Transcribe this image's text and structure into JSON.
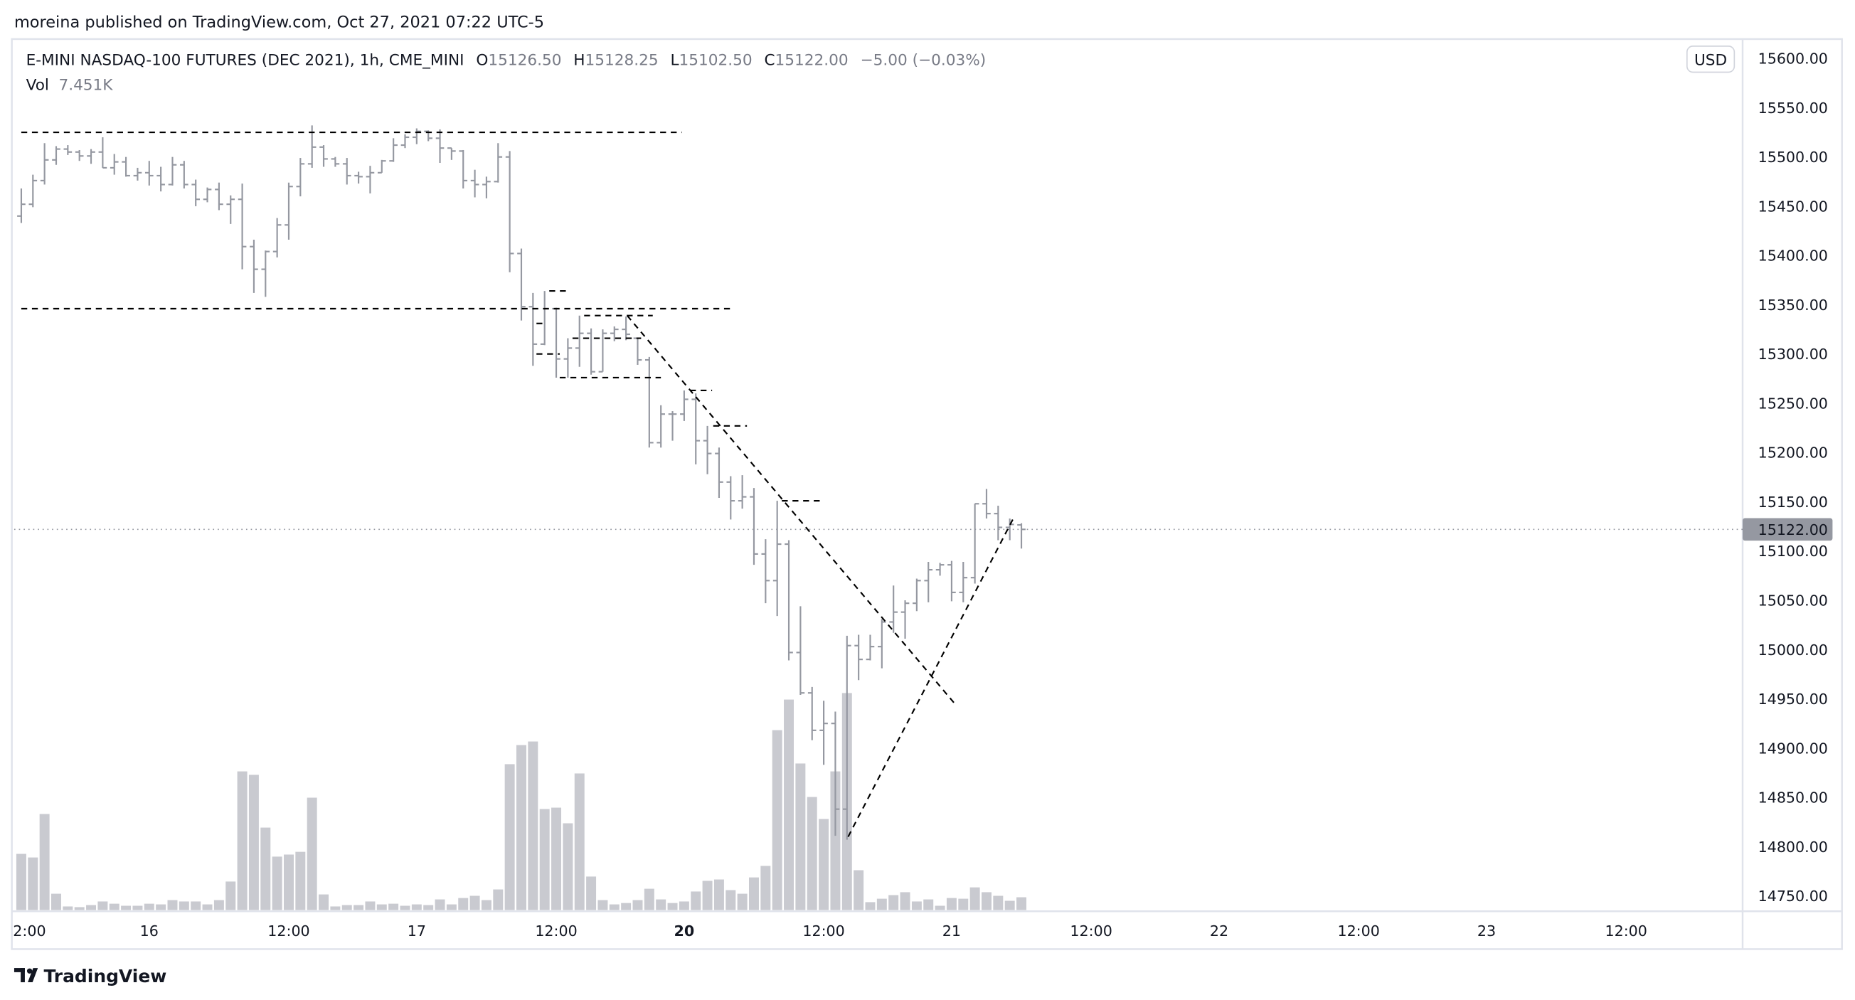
{
  "publish_line": "moreina published on TradingView.com, Oct 27, 2021 07:22 UTC-5",
  "legend": {
    "symbol": "E-MINI NASDAQ-100 FUTURES (DEC 2021), 1h, CME_MINI",
    "o_label": "O",
    "o": "15126.50",
    "h_label": "H",
    "h": "15128.25",
    "l_label": "L",
    "l": "15102.50",
    "c_label": "C",
    "c": "15122.00",
    "change": "−5.00 (−0.03%)",
    "vol_label": "Vol",
    "vol": "7.451K"
  },
  "currency": "USD",
  "last_price_label": "15122.00",
  "brand": "TradingView",
  "colors": {
    "bar": "#9598a1",
    "volume": "#c9cad0",
    "drawing": "#000000",
    "last_price_bg": "#9598a1"
  },
  "chart_data": {
    "type": "ohlc",
    "title": "E-MINI NASDAQ-100 FUTURES (DEC 2021), 1h, CME_MINI",
    "ylim": [
      14725,
      15625
    ],
    "last_price": 15122.0,
    "price_ticks": [
      "15600.00",
      "15550.00",
      "15500.00",
      "15450.00",
      "15400.00",
      "15350.00",
      "15300.00",
      "15250.00",
      "15200.00",
      "15150.00",
      "15100.00",
      "15050.00",
      "15000.00",
      "14950.00",
      "14900.00",
      "14850.00",
      "14800.00",
      "14750.00"
    ],
    "time_ticks": [
      {
        "label": "2:00",
        "bar": 0.4,
        "bold": false
      },
      {
        "label": "16",
        "bar": 11,
        "bold": false
      },
      {
        "label": "12:00",
        "bar": 23,
        "bold": false
      },
      {
        "label": "17",
        "bar": 34,
        "bold": false
      },
      {
        "label": "12:00",
        "bar": 46,
        "bold": false
      },
      {
        "label": "20",
        "bar": 57,
        "bold": true
      },
      {
        "label": "12:00",
        "bar": 69,
        "bold": false
      },
      {
        "label": "21",
        "bar": 80,
        "bold": false
      },
      {
        "label": "12:00",
        "bar": 92,
        "bold": false
      },
      {
        "label": "22",
        "bar": 103,
        "bold": false
      },
      {
        "label": "12:00",
        "bar": 115,
        "bold": false
      },
      {
        "label": "23",
        "bar": 126,
        "bold": false
      },
      {
        "label": "12:00",
        "bar": 138,
        "bold": false
      }
    ],
    "bar_fields": [
      "open",
      "high",
      "low",
      "close",
      "volume_k"
    ],
    "bars": [
      [
        15440,
        15468,
        15433,
        15452,
        32.7
      ],
      [
        15452,
        15482,
        15449,
        15476,
        30.6
      ],
      [
        15476,
        15514,
        15472,
        15497,
        55.9
      ],
      [
        15497,
        15511,
        15492,
        15508,
        9.5
      ],
      [
        15508,
        15512,
        15502,
        15505,
        2.1
      ],
      [
        15505,
        15507,
        15496,
        15501,
        1.7
      ],
      [
        15501,
        15508,
        15493,
        15505,
        2.9
      ],
      [
        15505,
        15520,
        15489,
        15489,
        5.0
      ],
      [
        15489,
        15503,
        15482,
        15495,
        3.7
      ],
      [
        15495,
        15500,
        15480,
        15481,
        2.5
      ],
      [
        15481,
        15489,
        15476,
        15484,
        2.5
      ],
      [
        15484,
        15496,
        15471,
        15481,
        3.7
      ],
      [
        15481,
        15490,
        15465,
        15472,
        3.3
      ],
      [
        15472,
        15500,
        15471,
        15492,
        5.8
      ],
      [
        15492,
        15496,
        15468,
        15472,
        5.0
      ],
      [
        15472,
        15477,
        15450,
        15457,
        5.0
      ],
      [
        15457,
        15469,
        15454,
        15467,
        3.3
      ],
      [
        15467,
        15474,
        15446,
        15452,
        5.8
      ],
      [
        15452,
        15461,
        15432,
        15457,
        16.6
      ],
      [
        15457,
        15473,
        15386,
        15409,
        80.7
      ],
      [
        15409,
        15416,
        15362,
        15386,
        78.7
      ],
      [
        15386,
        15405,
        15358,
        15404,
        48.0
      ],
      [
        15404,
        15438,
        15398,
        15431,
        31.1
      ],
      [
        15431,
        15474,
        15416,
        15470,
        32.3
      ],
      [
        15470,
        15499,
        15460,
        15493,
        33.9
      ],
      [
        15493,
        15532,
        15489,
        15510,
        65.4
      ],
      [
        15510,
        15512,
        15490,
        15498,
        9.1
      ],
      [
        15498,
        15500,
        15490,
        15493,
        2.1
      ],
      [
        15493,
        15499,
        15472,
        15481,
        2.9
      ],
      [
        15481,
        15485,
        15473,
        15480,
        2.9
      ],
      [
        15480,
        15491,
        15463,
        15484,
        5.0
      ],
      [
        15484,
        15497,
        15484,
        15496,
        3.3
      ],
      [
        15496,
        15519,
        15495,
        15512,
        3.7
      ],
      [
        15512,
        15523,
        15509,
        15520,
        2.5
      ],
      [
        15520,
        15529,
        15513,
        15526,
        3.3
      ],
      [
        15526,
        15527,
        15516,
        15519,
        2.9
      ],
      [
        15519,
        15528,
        15494,
        15509,
        6.2
      ],
      [
        15509,
        15509,
        15497,
        15506,
        3.3
      ],
      [
        15506,
        15507,
        15468,
        15476,
        7.0
      ],
      [
        15476,
        15487,
        15459,
        15472,
        8.3
      ],
      [
        15472,
        15480,
        15458,
        15475,
        5.8
      ],
      [
        15475,
        15514,
        15474,
        15500,
        12.0
      ],
      [
        15500,
        15506,
        15383,
        15402,
        84.9
      ],
      [
        15402,
        15407,
        15334,
        15348,
        96.0
      ],
      [
        15348,
        15362,
        15288,
        15310,
        98.1
      ],
      [
        15310,
        15364,
        15309,
        15346,
        58.8
      ],
      [
        15346,
        15347,
        15276,
        15295,
        59.6
      ],
      [
        15295,
        15316,
        15276,
        15306,
        50.5
      ],
      [
        15306,
        15339,
        15287,
        15321,
        79.5
      ],
      [
        15321,
        15326,
        15279,
        15282,
        19.5
      ],
      [
        15282,
        15325,
        15282,
        15321,
        5.8
      ],
      [
        15321,
        15328,
        15313,
        15325,
        3.3
      ],
      [
        15325,
        15338,
        15314,
        15320,
        4.1
      ],
      [
        15316,
        15316,
        15289,
        15294,
        5.8
      ],
      [
        15294,
        15297,
        15205,
        15210,
        12.4
      ],
      [
        15210,
        15248,
        15205,
        15239,
        6.2
      ],
      [
        15239,
        15242,
        15212,
        15239,
        4.1
      ],
      [
        15239,
        15263,
        15232,
        15254,
        5.0
      ],
      [
        15254,
        15260,
        15188,
        15212,
        10.8
      ],
      [
        15212,
        15227,
        15178,
        15199,
        17.0
      ],
      [
        15199,
        15205,
        15154,
        15170,
        17.8
      ],
      [
        15170,
        15176,
        15132,
        15151,
        11.6
      ],
      [
        15151,
        15177,
        15143,
        15155,
        9.5
      ],
      [
        15155,
        15164,
        15086,
        15097,
        19.0
      ],
      [
        15097,
        15112,
        15047,
        15070,
        25.7
      ],
      [
        15070,
        15151,
        15034,
        15107,
        104.7
      ],
      [
        15107,
        15111,
        14989,
        14997,
        122.5
      ],
      [
        14997,
        15044,
        14954,
        14956,
        85.3
      ],
      [
        14956,
        14962,
        14908,
        14918,
        65.8
      ],
      [
        14918,
        14948,
        14883,
        14925,
        53.0
      ],
      [
        14925,
        14937,
        14811,
        14838,
        80.7
      ],
      [
        14838,
        15014,
        14807,
        15004,
        126.3
      ],
      [
        15004,
        15015,
        14969,
        14990,
        23.2
      ],
      [
        14990,
        15015,
        14989,
        15003,
        4.6
      ],
      [
        15003,
        15031,
        14981,
        15028,
        6.6
      ],
      [
        15028,
        15065,
        15017,
        15038,
        8.7
      ],
      [
        15038,
        15050,
        15011,
        15047,
        10.4
      ],
      [
        15047,
        15072,
        15039,
        15070,
        5.0
      ],
      [
        15070,
        15089,
        15048,
        15081,
        6.2
      ],
      [
        15081,
        15088,
        15075,
        15086,
        2.5
      ],
      [
        15086,
        15090,
        15049,
        15058,
        7.0
      ],
      [
        15058,
        15089,
        15048,
        15073,
        6.6
      ],
      [
        15073,
        15148,
        15067,
        15148,
        13.2
      ],
      [
        15148,
        15163,
        15133,
        15138,
        10.4
      ],
      [
        15138,
        15146,
        15111,
        15124,
        8.3
      ],
      [
        15124,
        15133,
        15111,
        15127,
        5.4
      ],
      [
        15126.5,
        15128.25,
        15102.5,
        15122,
        7.451
      ]
    ],
    "drawings": [
      {
        "type": "hline",
        "price": 15525,
        "from_bar": 0,
        "to_bar": 56.8
      },
      {
        "type": "hline",
        "price": 15346,
        "from_bar": 0,
        "to_bar": 61
      },
      {
        "type": "hline",
        "price": 15364,
        "from_bar": 45.4,
        "to_bar": 47.2
      },
      {
        "type": "hline",
        "price": 15339,
        "from_bar": 48.4,
        "to_bar": 54.3
      },
      {
        "type": "hline",
        "price": 15331,
        "from_bar": 44.3,
        "to_bar": 44.9
      },
      {
        "type": "hline",
        "price": 15316,
        "from_bar": 47.4,
        "to_bar": 53.3
      },
      {
        "type": "hline",
        "price": 15300,
        "from_bar": 44.3,
        "to_bar": 46.3
      },
      {
        "type": "hline",
        "price": 15276,
        "from_bar": 46.3,
        "to_bar": 55
      },
      {
        "type": "hline",
        "price": 15263,
        "from_bar": 57.5,
        "to_bar": 59.4
      },
      {
        "type": "hline",
        "price": 15227,
        "from_bar": 59.5,
        "to_bar": 62.4
      },
      {
        "type": "hline",
        "price": 15151,
        "from_bar": 65.4,
        "to_bar": 68.7
      },
      {
        "type": "trend",
        "from_bar": 52.1,
        "from_price": 15339,
        "to_bar": 80.2,
        "to_price": 14946
      },
      {
        "type": "trend",
        "from_bar": 71.1,
        "from_price": 14810,
        "to_bar": 85.3,
        "to_price": 15133
      }
    ]
  }
}
